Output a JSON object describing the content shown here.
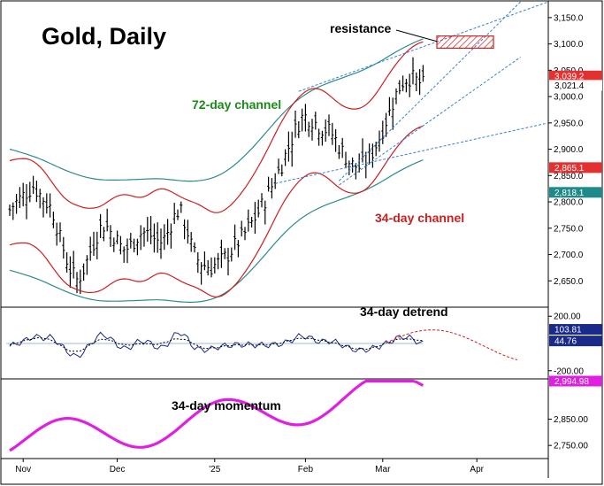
{
  "title": "Gold, Daily",
  "annotations": {
    "resistance": "resistance",
    "channel72": "72-day channel",
    "channel34": "34-day channel",
    "detrend": "34-day detrend",
    "momentum": "34-day  momentum"
  },
  "colors": {
    "price_bars": "#000000",
    "channel72": "#2e8b8b",
    "channel34": "#cc1f1f",
    "trendlines": "#3a7fd5",
    "detrend_line": "#1a2a8a",
    "detrend_projection": "#cc1f1f",
    "momentum": "#e020e0",
    "ann_green": "#1a8a1a",
    "ann_red": "#cc1f1f"
  },
  "chart_data": [
    {
      "type": "ohlc",
      "name": "price",
      "ylim": [
        2600,
        3170
      ],
      "y_ticks": [
        "3,150.0",
        "3,100.0",
        "3,050.0",
        "3,000.0",
        "2,950.0",
        "2,900.0",
        "2,850.0",
        "2,800.0",
        "2,750.0",
        "2,700.0",
        "2,650.0"
      ],
      "y_tick_values": [
        3150,
        3100,
        3050,
        3000,
        2950,
        2900,
        2850,
        2800,
        2750,
        2700,
        2650
      ],
      "x_labels": [
        "Nov",
        "Dec",
        "'25",
        "Feb",
        "Mar",
        "Apr"
      ],
      "x_label_bars": [
        4,
        32,
        61,
        88,
        111,
        139
      ],
      "num_bars": 170,
      "close": [
        2785,
        2793,
        2800,
        2806,
        2812,
        2818,
        2824,
        2830,
        2822,
        2814,
        2806,
        2798,
        2790,
        2778,
        2755,
        2730,
        2710,
        2690,
        2672,
        2660,
        2652,
        2660,
        2672,
        2688,
        2706,
        2722,
        2738,
        2750,
        2756,
        2752,
        2744,
        2736,
        2726,
        2716,
        2710,
        2712,
        2718,
        2726,
        2734,
        2740,
        2742,
        2740,
        2736,
        2730,
        2726,
        2724,
        2730,
        2742,
        2758,
        2772,
        2782,
        2778,
        2762,
        2742,
        2718,
        2700,
        2690,
        2684,
        2680,
        2678,
        2676,
        2680,
        2684,
        2688,
        2694,
        2700,
        2708,
        2716,
        2724,
        2732,
        2740,
        2750,
        2760,
        2770,
        2780,
        2792,
        2804,
        2816,
        2830,
        2844,
        2858,
        2872,
        2888,
        2904,
        2920,
        2936,
        2950,
        2960,
        2962,
        2960,
        2956,
        2950,
        2944,
        2940,
        2938,
        2934,
        2928,
        2918,
        2906,
        2896,
        2886,
        2876,
        2870,
        2868,
        2866,
        2870,
        2876,
        2884,
        2895,
        2908,
        2922,
        2938,
        2954,
        2970,
        2988,
        3004,
        3018,
        3028,
        3034,
        3036,
        3034,
        3030,
        3026,
        3022
      ],
      "last_labels": {
        "high": "3,039.2",
        "last": "3,021.4",
        "ch34_lower": "2,865.1",
        "ch72_lower": "2,818.1"
      },
      "last_values": {
        "high": 3039.2,
        "last": 3021.4,
        "ch34_lower": 2865.1,
        "ch72_lower": 2818.1
      }
    },
    {
      "type": "line",
      "name": "34-day detrend",
      "ylim": [
        -260,
        260
      ],
      "y_ticks": [
        "200.00",
        "-200.00"
      ],
      "y_tick_values": [
        200,
        -200
      ],
      "last_labels": {
        "upper": "103.81",
        "lower": "44.76"
      },
      "last_values": {
        "upper": 103.81,
        "lower": 44.76
      }
    },
    {
      "type": "line",
      "name": "34-day momentum",
      "ylim": [
        2700,
        3000
      ],
      "y_ticks": [
        "2,850.00",
        "2,750.00"
      ],
      "y_tick_values": [
        2850,
        2750
      ],
      "last_labels": {
        "last": "2,994.98"
      },
      "last_values": {
        "last": 2994.98
      }
    }
  ]
}
